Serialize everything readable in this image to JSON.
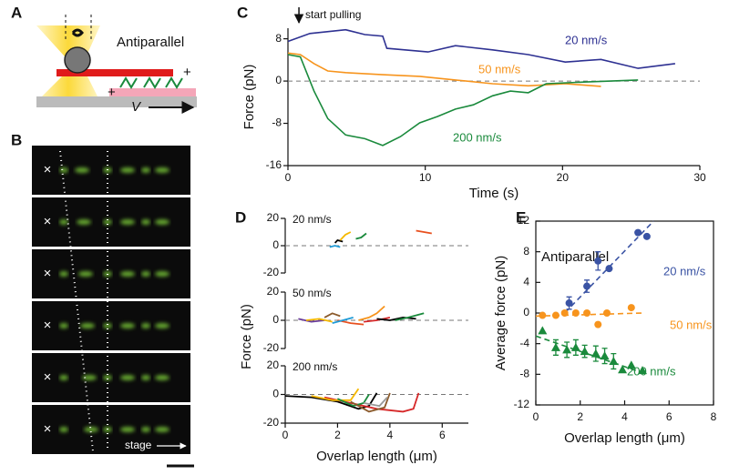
{
  "figure": {
    "panel_labels": [
      "A",
      "B",
      "C",
      "D",
      "E"
    ],
    "A": {
      "label": "Antiparallel",
      "plus_ends": [
        "+",
        "+"
      ],
      "velocity": "V"
    },
    "B": {
      "markers": [
        "×",
        "×",
        "×",
        "×",
        "×",
        "×"
      ],
      "stage": "stage"
    }
  },
  "chart_data": [
    {
      "type": "line",
      "xlabel": "Time (s)",
      "ylabel": "Force (pN)",
      "annotation": "start pulling",
      "annotation_x": 0.8,
      "xlim": [
        0,
        30
      ],
      "xticks": [
        0,
        10,
        20,
        30
      ],
      "ylim": [
        -16,
        10
      ],
      "yticks": [
        -16,
        -8,
        0,
        8
      ],
      "reference_line": 0,
      "series": [
        {
          "name": "20 nm/s",
          "color": "#2e3192",
          "x": [
            0,
            1.6,
            4.2,
            5.6,
            6.9,
            7.2,
            10.2,
            12.2,
            14.9,
            17.5,
            20.2,
            22.8,
            25.5,
            27,
            28.2
          ],
          "values": [
            7.5,
            9,
            9.7,
            8.8,
            8.5,
            6.2,
            5.5,
            6.7,
            5.9,
            5,
            3.6,
            4.1,
            2.4,
            2.9,
            3.3
          ]
        },
        {
          "name": "50 nm/s",
          "color": "#f7941d",
          "x": [
            0,
            0.9,
            1.9,
            2.9,
            4.2,
            6.9,
            9.6,
            12.2,
            14.9,
            17.5,
            20.2,
            22.8
          ],
          "values": [
            5.3,
            5,
            3.3,
            1.9,
            1.6,
            1.2,
            0.9,
            0.2,
            -0.5,
            -0.9,
            -0.5,
            -1
          ]
        },
        {
          "name": "200 nm/s",
          "color": "#1a8a3c",
          "x": [
            0,
            0.9,
            1.9,
            2.9,
            4.2,
            5.6,
            6.9,
            8.2,
            9.6,
            10.9,
            12.2,
            13.5,
            14.9,
            16.2,
            17.5,
            18.8,
            21.5,
            25.5
          ],
          "values": [
            5,
            4.6,
            -1.9,
            -7.1,
            -10.2,
            -10.9,
            -12.2,
            -10.5,
            -7.9,
            -6.7,
            -5.3,
            -4.5,
            -2.8,
            -1.9,
            -2.2,
            -0.5,
            -0.2,
            0.2
          ]
        }
      ]
    },
    {
      "type": "line",
      "title": "20 nm/s",
      "xlim": [
        0,
        7
      ],
      "ylim": [
        -20,
        20
      ],
      "yticks": [
        -20,
        0,
        20
      ],
      "reference_line": 0,
      "series": [
        {
          "color": "#1f9bd7",
          "x": [
            1.7,
            1.9,
            2.1
          ],
          "values": [
            -1,
            0,
            -1
          ]
        },
        {
          "color": "#000000",
          "x": [
            1.9,
            2.0,
            2.2
          ],
          "values": [
            2,
            4,
            3
          ]
        },
        {
          "color": "#f5b800",
          "x": [
            2.1,
            2.3,
            2.5
          ],
          "values": [
            4,
            8,
            10
          ]
        },
        {
          "color": "#1a8a3c",
          "x": [
            2.7,
            2.9,
            3.1
          ],
          "values": [
            5,
            6,
            9
          ]
        },
        {
          "color": "#e8501f",
          "x": [
            5.0,
            5.3,
            5.6
          ],
          "values": [
            11,
            10,
            9
          ]
        }
      ]
    },
    {
      "type": "line",
      "title": "50 nm/s",
      "ylabel": "Force (pN)",
      "xlim": [
        0,
        7
      ],
      "ylim": [
        -20,
        20
      ],
      "yticks": [
        -20,
        0,
        20
      ],
      "reference_line": 0,
      "series": [
        {
          "color": "#6a3d9a",
          "x": [
            0.5,
            1.0,
            1.5
          ],
          "values": [
            1,
            -1,
            0
          ]
        },
        {
          "color": "#f5b800",
          "x": [
            0.8,
            1.3,
            1.8
          ],
          "values": [
            0,
            1,
            -1
          ]
        },
        {
          "color": "#8b5a2b",
          "x": [
            1.5,
            1.8,
            2.1
          ],
          "values": [
            2,
            5,
            3
          ]
        },
        {
          "color": "#e8501f",
          "x": [
            2.0,
            2.5,
            3.0
          ],
          "values": [
            0,
            -2,
            -3
          ]
        },
        {
          "color": "#1f9bd7",
          "x": [
            1.8,
            2.2,
            2.6
          ],
          "values": [
            -2,
            0,
            2
          ]
        },
        {
          "color": "#f7941d",
          "x": [
            2.8,
            3.2,
            3.5,
            3.8
          ],
          "values": [
            0,
            2,
            5,
            10
          ]
        },
        {
          "color": "#d62728",
          "x": [
            3.0,
            3.5,
            4.0
          ],
          "values": [
            -1,
            0,
            2
          ]
        },
        {
          "color": "#000000",
          "x": [
            3.5,
            4.0,
            4.5,
            5.0
          ],
          "values": [
            1,
            0,
            2,
            1
          ]
        },
        {
          "color": "#1a8a3c",
          "x": [
            4.2,
            4.7,
            5.3
          ],
          "values": [
            0,
            2,
            5
          ]
        }
      ]
    },
    {
      "type": "line",
      "title": "200 nm/s",
      "xlabel": "Overlap length (μm)",
      "xlim": [
        0,
        7
      ],
      "xticks": [
        0,
        2,
        4,
        6
      ],
      "ylim": [
        -20,
        20
      ],
      "yticks": [
        -20,
        0,
        20
      ],
      "reference_line": 0,
      "series": [
        {
          "color": "#000000",
          "x": [
            0,
            1,
            2,
            2.8,
            3.2,
            3.5
          ],
          "values": [
            -1,
            -2,
            -5,
            -10,
            -8,
            1
          ]
        },
        {
          "color": "#d62728",
          "x": [
            1.5,
            2.5,
            3.5,
            4.5,
            4.9,
            5.1
          ],
          "values": [
            -2,
            -6,
            -10,
            -12,
            -10,
            1
          ]
        },
        {
          "color": "#f5b800",
          "x": [
            1.0,
            1.8,
            2.5,
            2.8
          ],
          "values": [
            -1,
            -4,
            -4,
            4
          ]
        },
        {
          "color": "#1a8a3c",
          "x": [
            2.0,
            2.6,
            3.0,
            3.2
          ],
          "values": [
            -3,
            -8,
            -6,
            0
          ]
        },
        {
          "color": "#8b5a2b",
          "x": [
            2.5,
            3.2,
            3.8,
            4.0
          ],
          "values": [
            -5,
            -12,
            -9,
            1
          ]
        },
        {
          "color": "#999999",
          "x": [
            3.0,
            3.6,
            3.9
          ],
          "values": [
            -6,
            -8,
            -2
          ]
        }
      ]
    },
    {
      "type": "scatter",
      "xlabel": "Overlap length (μm)",
      "ylabel": "Average force (pN)",
      "annotation": "Antiparallel",
      "xlim": [
        0,
        8
      ],
      "xticks": [
        0,
        2,
        4,
        6,
        8
      ],
      "ylim": [
        -12,
        12
      ],
      "yticks": [
        -12,
        -8,
        -4,
        0,
        4,
        8,
        12
      ],
      "series": [
        {
          "name": "20 nm/s",
          "color": "#3a53a4",
          "marker": "circle",
          "x": [
            1.5,
            2.3,
            2.8,
            3.3,
            4.6,
            5.0
          ],
          "values": [
            1.3,
            3.5,
            6.8,
            5.8,
            10.5,
            10.0
          ],
          "errors": [
            0.8,
            0.8,
            1.2,
            null,
            null,
            null
          ],
          "fit": {
            "x": [
              1.3,
              5.3
            ],
            "values": [
              0,
              12
            ]
          }
        },
        {
          "name": "50 nm/s",
          "color": "#f7941d",
          "marker": "circle",
          "x": [
            0.3,
            0.9,
            1.3,
            1.8,
            2.3,
            2.8,
            3.2,
            4.3
          ],
          "values": [
            -0.3,
            -0.3,
            0,
            0,
            0,
            -1.5,
            0,
            0.7
          ],
          "errors": [
            null,
            null,
            null,
            null,
            null,
            null,
            null,
            null
          ],
          "fit": {
            "x": [
              0,
              4.8
            ],
            "values": [
              -0.4,
              0
            ]
          }
        },
        {
          "name": "200 nm/s",
          "color": "#1a8a3c",
          "marker": "triangle",
          "x": [
            0.3,
            0.9,
            1.4,
            1.8,
            2.2,
            2.7,
            3.1,
            3.5,
            3.9,
            4.3,
            4.8
          ],
          "values": [
            -2.3,
            -4.5,
            -4.8,
            -4.5,
            -5,
            -5.3,
            -5.6,
            -6.3,
            -7.4,
            -6.8,
            -7.5
          ],
          "errors": [
            null,
            1,
            1,
            1,
            0.8,
            1,
            1,
            1,
            null,
            null,
            null
          ],
          "fit": {
            "x": [
              0,
              4.8
            ],
            "values": [
              -3,
              -7.8
            ]
          }
        }
      ]
    }
  ]
}
